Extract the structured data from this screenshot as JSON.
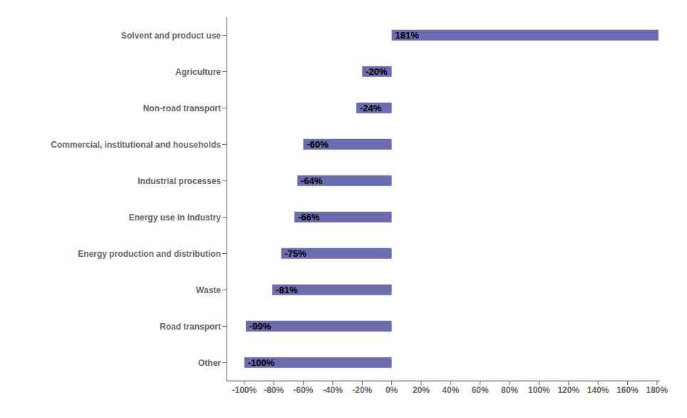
{
  "chart_data": {
    "type": "bar",
    "orientation": "horizontal",
    "categories": [
      "Other",
      "Road transport",
      "Waste",
      "Energy production and distribution",
      "Energy use in industry",
      "Industrial processes",
      "Commercial, institutional and households",
      "Non-road transport",
      "Agriculture",
      "Solvent and product use"
    ],
    "values": [
      -100,
      -99,
      -81,
      -75,
      -66,
      -64,
      -60,
      -24,
      -20,
      181
    ],
    "value_labels": [
      "-100%",
      "-99%",
      "-81%",
      "-75%",
      "-66%",
      "-64%",
      "-60%",
      "-24%",
      "-20%",
      "181%"
    ],
    "data_labels": true,
    "color": "#6b6baf",
    "xlim": [
      -112,
      182
    ],
    "xticks": [
      {
        "value": -100,
        "label": "-100%"
      },
      {
        "value": -80,
        "label": "-80%"
      },
      {
        "value": -60,
        "label": "-60%"
      },
      {
        "value": -40,
        "label": "-40%"
      },
      {
        "value": -20,
        "label": "-20%"
      },
      {
        "value": 0,
        "label": "0%"
      },
      {
        "value": 20,
        "label": "20%"
      },
      {
        "value": 40,
        "label": "40%"
      },
      {
        "value": 60,
        "label": "60%"
      },
      {
        "value": 80,
        "label": "80%"
      },
      {
        "value": 100,
        "label": "100%"
      },
      {
        "value": 120,
        "label": "120%"
      },
      {
        "value": 140,
        "label": "140%"
      },
      {
        "value": 160,
        "label": "160%"
      },
      {
        "value": 180,
        "label": "180%"
      }
    ],
    "grid": false
  }
}
